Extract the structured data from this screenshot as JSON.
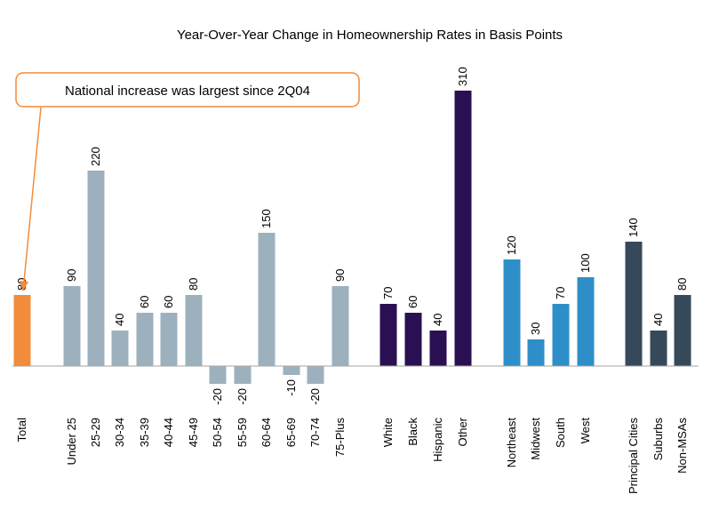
{
  "chart_data": {
    "type": "bar",
    "title": "Year-Over-Year Change in Homeownership Rates in Basis Points",
    "xlabel": "",
    "ylabel": "",
    "ylim": [
      -30,
      320
    ],
    "grid": false,
    "legend": "none",
    "categories": [
      "Total",
      "Under 25",
      "25-29",
      "30-34",
      "35-39",
      "40-44",
      "45-49",
      "50-54",
      "55-59",
      "60-64",
      "65-69",
      "70-74",
      "75-Plus",
      "White",
      "Black",
      "Hispanic",
      "Other",
      "Northeast",
      "Midwest",
      "South",
      "West",
      "Principal Cities",
      "Suburbs",
      "Non-MSAs"
    ],
    "values": [
      80,
      90,
      220,
      40,
      60,
      60,
      80,
      -20,
      -20,
      150,
      -10,
      -20,
      90,
      70,
      60,
      40,
      310,
      120,
      30,
      70,
      100,
      140,
      40,
      80
    ],
    "groups": [
      "total",
      "age",
      "age",
      "age",
      "age",
      "age",
      "age",
      "age",
      "age",
      "age",
      "age",
      "age",
      "age",
      "race",
      "race",
      "race",
      "race",
      "region",
      "region",
      "region",
      "region",
      "location",
      "location",
      "location"
    ],
    "group_colors": {
      "total": "#F28C3A",
      "age": "#9DB0BE",
      "race": "#2A1052",
      "region": "#2E8FC8",
      "location": "#36495A"
    },
    "annotation": {
      "text": "National increase was largest since 2Q04",
      "border_color": "#F28C3A",
      "points_to": "Total"
    }
  }
}
